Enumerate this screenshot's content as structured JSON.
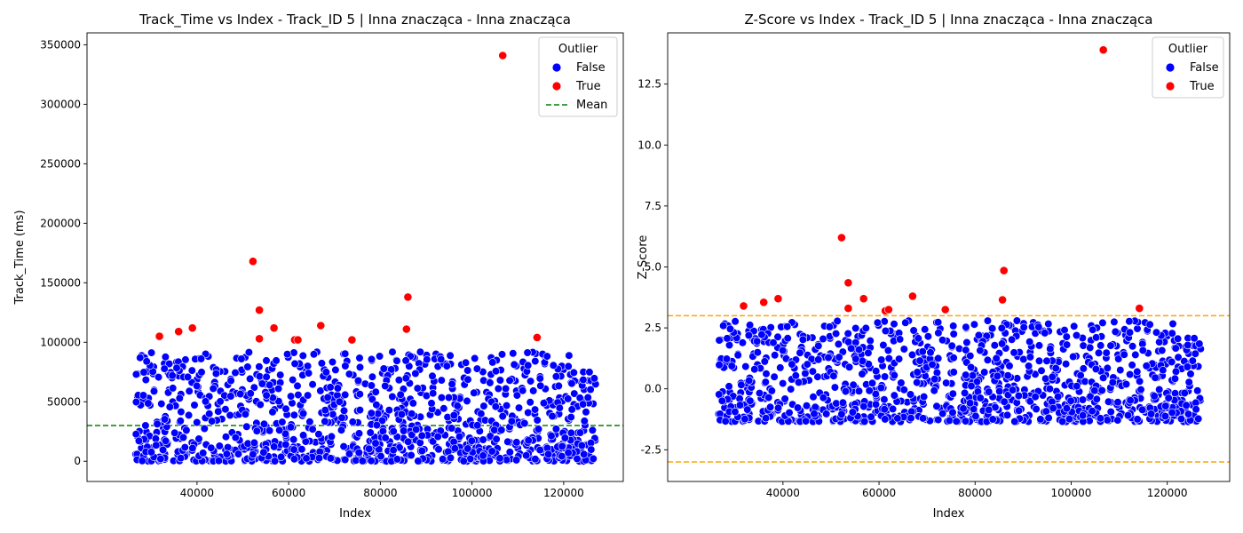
{
  "chart_data": [
    {
      "type": "scatter",
      "title": "Track_Time vs Index - Track_ID 5 | Inna znacząca - Inna znacząca",
      "xlabel": "Index",
      "ylabel": "Track_Time (ms)",
      "xlim": [
        16000,
        133000
      ],
      "ylim": [
        -17000,
        360000
      ],
      "xticks": [
        40000,
        60000,
        80000,
        100000,
        120000
      ],
      "yticks": [
        0,
        50000,
        100000,
        150000,
        200000,
        250000,
        300000,
        350000
      ],
      "legend": {
        "title": "Outlier",
        "position": "top-right",
        "entries": [
          {
            "label": "False",
            "kind": "marker",
            "color": "#0000ff"
          },
          {
            "label": "True",
            "kind": "marker",
            "color": "#ff0000"
          },
          {
            "label": "Mean",
            "kind": "dashed-line",
            "color": "#008000"
          }
        ]
      },
      "reference_lines": [
        {
          "name": "Mean",
          "y": 30000,
          "color": "#008000"
        }
      ],
      "series": [
        {
          "name": "True",
          "color": "#ff0000",
          "points": [
            [
              31800,
              105000
            ],
            [
              36000,
              109000
            ],
            [
              39000,
              112000
            ],
            [
              52200,
              168000
            ],
            [
              53600,
              127000
            ],
            [
              53600,
              103000
            ],
            [
              56800,
              112000
            ],
            [
              61300,
              102000
            ],
            [
              62000,
              102000
            ],
            [
              67000,
              114000
            ],
            [
              73800,
              102000
            ],
            [
              85700,
              111000
            ],
            [
              86000,
              138000
            ],
            [
              106700,
              341000
            ],
            [
              114200,
              104000
            ]
          ]
        },
        {
          "name": "False",
          "color": "#0000ff",
          "generated": true,
          "x_range": [
            26500,
            127000
          ],
          "y_range": [
            0,
            92000
          ],
          "count": 1100
        }
      ]
    },
    {
      "type": "scatter",
      "title": "Z-Score vs Index - Track_ID 5 | Inna znacząca - Inna znacząca",
      "xlabel": "Index",
      "ylabel": "Z-Score",
      "xlim": [
        16000,
        133000
      ],
      "ylim": [
        -3.8,
        14.6
      ],
      "xticks": [
        40000,
        60000,
        80000,
        100000,
        120000
      ],
      "yticks": [
        -2.5,
        0.0,
        2.5,
        5.0,
        7.5,
        10.0,
        12.5
      ],
      "legend": {
        "title": "Outlier",
        "position": "top-right",
        "entries": [
          {
            "label": "False",
            "kind": "marker",
            "color": "#0000ff"
          },
          {
            "label": "True",
            "kind": "marker",
            "color": "#ff0000"
          }
        ]
      },
      "reference_lines": [
        {
          "name": "upper threshold",
          "y": 3,
          "color": "#ffa500"
        },
        {
          "name": "lower threshold",
          "y": -3,
          "color": "#ffa500"
        }
      ],
      "series": [
        {
          "name": "True",
          "color": "#ff0000",
          "points": [
            [
              31800,
              3.4
            ],
            [
              36000,
              3.55
            ],
            [
              39000,
              3.7
            ],
            [
              52200,
              6.2
            ],
            [
              53600,
              4.35
            ],
            [
              53600,
              3.3
            ],
            [
              56800,
              3.7
            ],
            [
              61300,
              3.2
            ],
            [
              62000,
              3.25
            ],
            [
              67000,
              3.8
            ],
            [
              73800,
              3.25
            ],
            [
              85700,
              3.65
            ],
            [
              86000,
              4.85
            ],
            [
              106700,
              13.9
            ],
            [
              114200,
              3.3
            ]
          ]
        },
        {
          "name": "False",
          "color": "#0000ff",
          "generated": true,
          "x_range": [
            26500,
            127000
          ],
          "y_range": [
            -1.35,
            2.8
          ],
          "count": 1100
        }
      ]
    }
  ]
}
